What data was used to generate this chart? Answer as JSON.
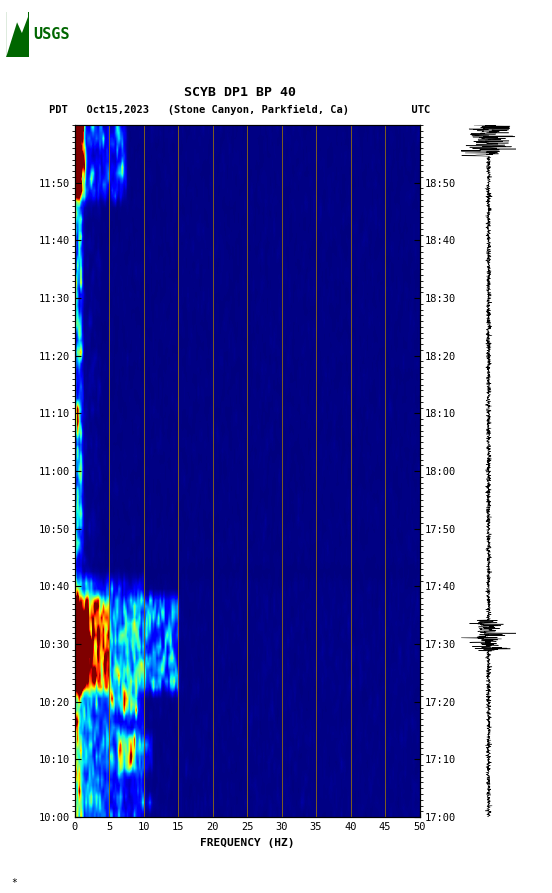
{
  "title_line1": "SCYB DP1 BP 40",
  "title_line2_pdt": "PDT   Oct15,2023   (Stone Canyon, Parkfield, Ca)          UTC",
  "xlabel": "FREQUENCY (HZ)",
  "freq_min": 0,
  "freq_max": 50,
  "freq_ticks": [
    0,
    5,
    10,
    15,
    20,
    25,
    30,
    35,
    40,
    45,
    50
  ],
  "ytick_labels_left": [
    "10:00",
    "10:10",
    "10:20",
    "10:30",
    "10:40",
    "10:50",
    "11:00",
    "11:10",
    "11:20",
    "11:30",
    "11:40",
    "11:50"
  ],
  "ytick_labels_right": [
    "17:00",
    "17:10",
    "17:20",
    "17:30",
    "17:40",
    "17:50",
    "18:00",
    "18:10",
    "18:20",
    "18:30",
    "18:40",
    "18:50"
  ],
  "vlines_freq": [
    5,
    10,
    15,
    20,
    25,
    30,
    35,
    40,
    45
  ],
  "vlines_color": "#8B6914",
  "spectrogram_bg": "#00008B",
  "logo_color": "#006600",
  "fig_width": 5.52,
  "fig_height": 8.93,
  "noise_seed": 42
}
